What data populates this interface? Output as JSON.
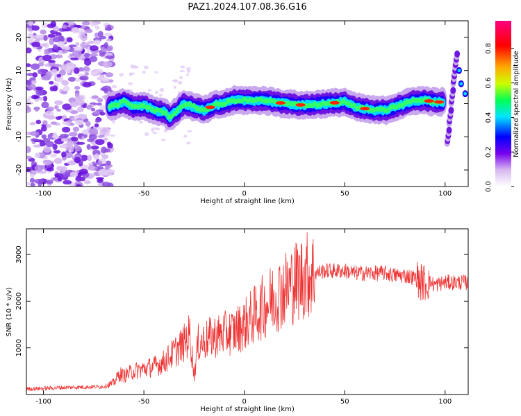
{
  "figure": {
    "title": "PAZ1.2024.107.08.36.G16"
  },
  "chart_data": [
    {
      "type": "heatmap",
      "title": "PAZ1.2024.107.08.36.G16",
      "xlabel": "Height of straight line (km)",
      "ylabel": "Frequency (Hz)",
      "xlim": [
        -108.5,
        111.5
      ],
      "ylim": [
        -25,
        25
      ],
      "xticks": [
        -100,
        -50,
        0,
        50,
        100
      ],
      "yticks": [
        -20,
        -10,
        0,
        10,
        20
      ],
      "colorbar": {
        "label": "Normalized spectral amplitude",
        "range": [
          0,
          0.96
        ],
        "ticks": [
          0.0,
          0.2,
          0.4,
          0.6,
          0.8
        ]
      },
      "ridge": {
        "x": [
          -67,
          -60,
          -55,
          -50,
          -45,
          -40,
          -37,
          -33,
          -30,
          -25,
          -20,
          -15,
          -10,
          -5,
          0,
          10,
          20,
          30,
          40,
          50,
          55,
          60,
          65,
          70,
          75,
          80,
          85,
          90,
          95,
          99
        ],
        "frequency": [
          -1,
          0.5,
          -1,
          -0.5,
          -2,
          -2.5,
          -4,
          -2,
          0,
          -1,
          -2,
          -0.5,
          0,
          1,
          1,
          1,
          0,
          -0.5,
          0,
          0.5,
          -1,
          -1.5,
          -2,
          -2,
          -1,
          0,
          1,
          1,
          0.5,
          0.5
        ]
      },
      "grid": false,
      "legend": "none"
    },
    {
      "type": "line",
      "xlabel": "Height of straight line (km)",
      "ylabel": "SNR (10 * v/v)",
      "xlim": [
        -108.5,
        111.5
      ],
      "ylim": [
        0,
        3550
      ],
      "xticks": [
        -100,
        -50,
        0,
        50,
        100
      ],
      "yticks": [
        1000,
        2000,
        3000
      ],
      "color": "#ee3333",
      "series": [
        {
          "x": [
            -108,
            -100,
            -90,
            -80,
            -70,
            -65,
            -62,
            -60,
            -55,
            -50,
            -45,
            -40,
            -35,
            -30,
            -27,
            -25,
            -23,
            -20,
            -15,
            -10,
            -5,
            0,
            5,
            10,
            15,
            20,
            25,
            30,
            35,
            40,
            45,
            50,
            55,
            60,
            65,
            70,
            75,
            80,
            85,
            88,
            90,
            92,
            95,
            100,
            105,
            111
          ],
          "values": [
            120,
            130,
            150,
            160,
            170,
            250,
            450,
            400,
            500,
            550,
            600,
            700,
            900,
            1100,
            1300,
            400,
            1100,
            1150,
            1250,
            1300,
            1350,
            1500,
            1700,
            1900,
            2100,
            2250,
            2400,
            2550,
            2600,
            2650,
            2650,
            2650,
            2600,
            2600,
            2600,
            2600,
            2550,
            2550,
            2500,
            2400,
            2400,
            2400,
            2350,
            2400,
            2400,
            2400
          ]
        }
      ],
      "grid": false,
      "legend": "none"
    }
  ]
}
